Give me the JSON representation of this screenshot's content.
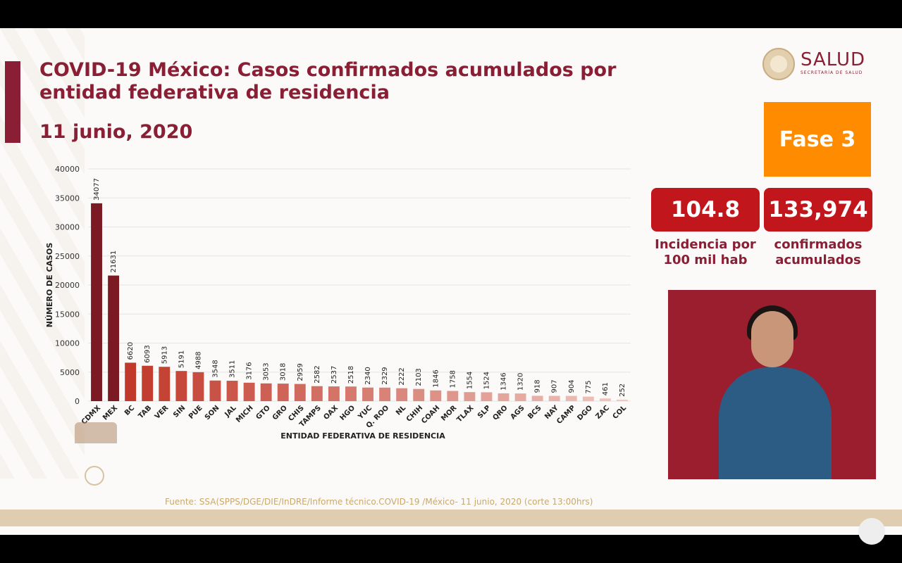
{
  "header": {
    "title": "COVID-19 México: Casos confirmados acumulados por entidad federativa de residencia",
    "date": "11 junio, 2020"
  },
  "logo": {
    "name": "SALUD",
    "subtitle": "SECRETARÍA DE SALUD"
  },
  "phase": {
    "label": "Fase 3",
    "color": "#ff8c00"
  },
  "stats": {
    "incidence_value": "104.8",
    "incidence_label_1": "Incidencia por",
    "incidence_label_2": "100 mil hab",
    "confirmed_value": "133,974",
    "confirmed_label_1": "confirmados",
    "confirmed_label_2": "acumulados"
  },
  "source": "Fuente: SSA(SPPS/DGE/DIE/InDRE/Informe técnico.COVID-19 /México- 11 junio, 2020 (corte 13:00hrs)",
  "colors": {
    "dark_bar": "#7b1a22",
    "mid_bar": "#c0392b",
    "light_bar": "#f0c8c0",
    "title": "#8a1e34",
    "stat_box": "#c0161c"
  },
  "chart_data": {
    "type": "bar",
    "xlabel": "ENTIDAD FEDERATIVA DE RESIDENCIA",
    "ylabel": "NÚMERO DE CASOS",
    "ylim": [
      0,
      40000
    ],
    "yticks": [
      0,
      5000,
      10000,
      15000,
      20000,
      25000,
      30000,
      35000,
      40000
    ],
    "grid": true,
    "categories": [
      "CDMX",
      "MEX",
      "BC",
      "TAB",
      "VER",
      "SIN",
      "PUE",
      "SON",
      "JAL",
      "MICH",
      "GTO",
      "GRO",
      "CHIS",
      "TAMPS",
      "OAX",
      "HGO",
      "YUC",
      "Q. ROO",
      "NL",
      "CHIH",
      "COAH",
      "MOR",
      "TLAX",
      "SLP",
      "QRO",
      "AGS",
      "BCS",
      "NAY",
      "CAMP",
      "DGO",
      "ZAC",
      "COL"
    ],
    "values": [
      34077,
      21631,
      6620,
      6093,
      5913,
      5191,
      4988,
      3548,
      3511,
      3176,
      3053,
      3018,
      2959,
      2582,
      2537,
      2518,
      2340,
      2329,
      2222,
      2103,
      1846,
      1758,
      1554,
      1524,
      1346,
      1320,
      918,
      907,
      904,
      775,
      461,
      252
    ]
  }
}
